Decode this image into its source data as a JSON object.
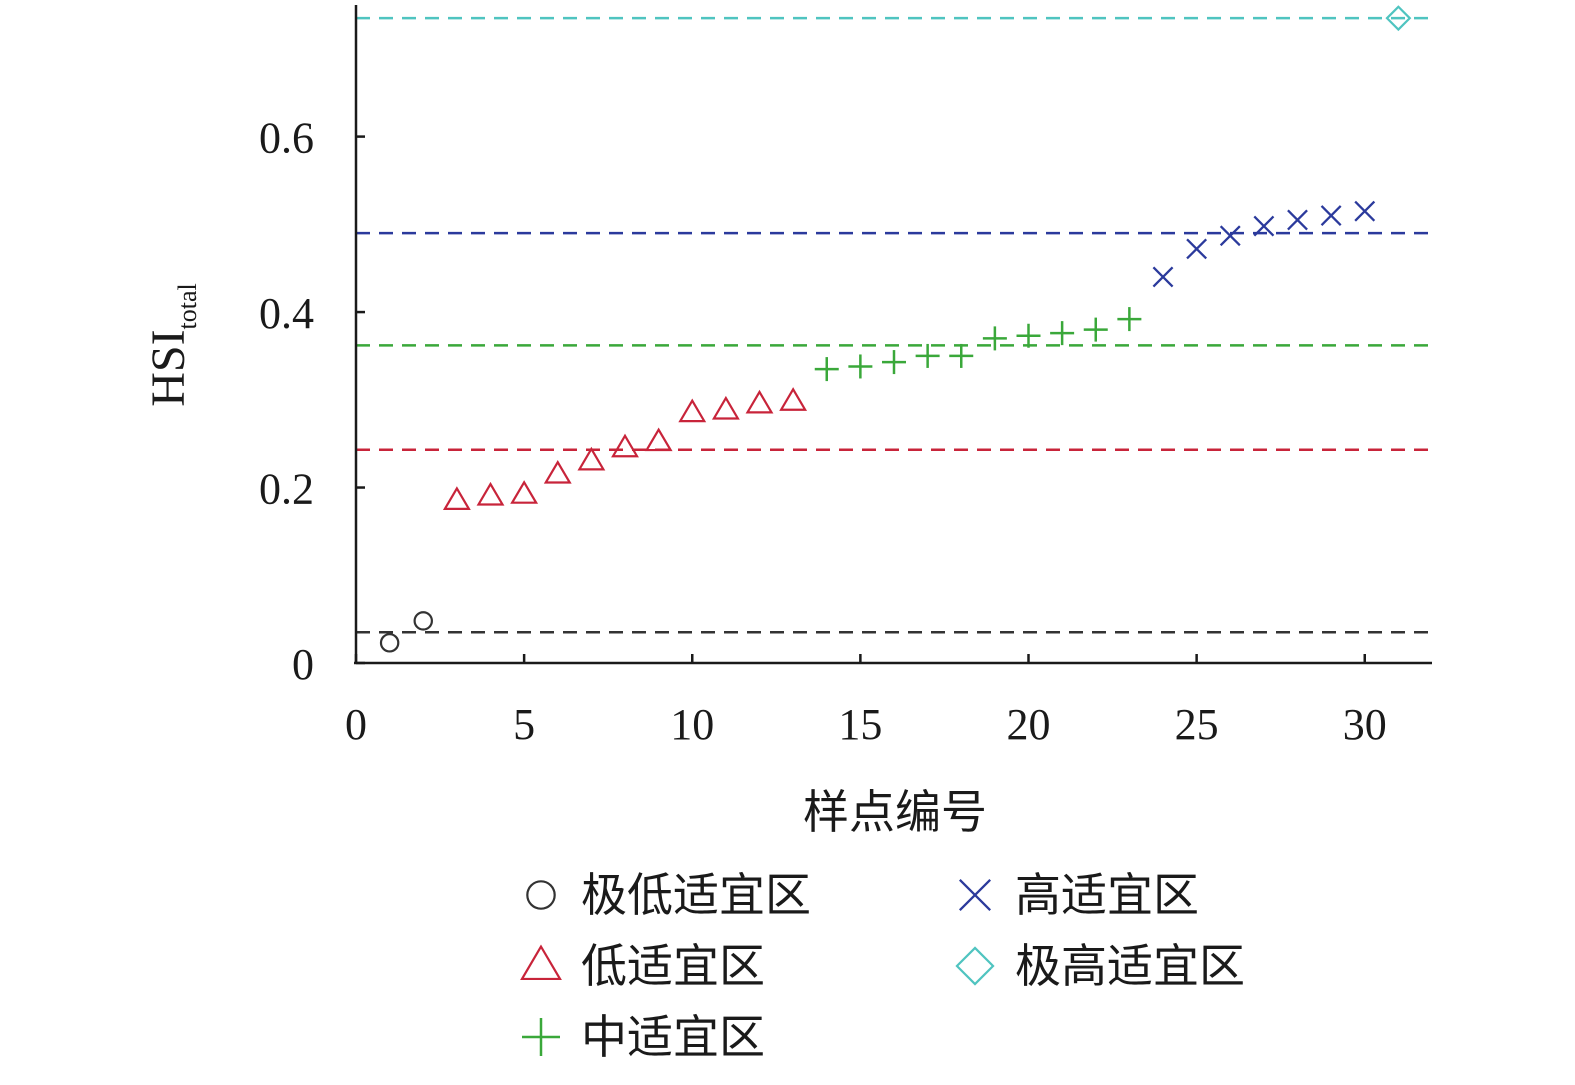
{
  "chart_data": {
    "type": "scatter",
    "xlabel": "样点编号",
    "ylabel": "HSI",
    "ylabel_subscript": "total",
    "xlim": [
      0,
      32
    ],
    "ylim": [
      0,
      0.75
    ],
    "xticks": [
      0,
      5,
      10,
      15,
      20,
      25,
      30
    ],
    "xtick_labels": [
      "0",
      "5",
      "10",
      "15",
      "20",
      "25",
      "30"
    ],
    "yticks": [
      0,
      0.2,
      0.4,
      0.6
    ],
    "ytick_labels": [
      "0",
      "0.2",
      "0.4",
      "0.6"
    ],
    "grid": false,
    "legend_position": "bottom",
    "series": [
      {
        "name": "极低适宜区",
        "marker": "circle",
        "color": "#333333",
        "x": [
          1,
          2
        ],
        "y": [
          0.023,
          0.048
        ]
      },
      {
        "name": "低适宜区",
        "marker": "triangle",
        "color": "#c8243a",
        "x": [
          3,
          4,
          5,
          6,
          7,
          8,
          9,
          10,
          11,
          12,
          13
        ],
        "y": [
          0.185,
          0.19,
          0.192,
          0.215,
          0.23,
          0.245,
          0.252,
          0.285,
          0.288,
          0.295,
          0.298
        ]
      },
      {
        "name": "中适宜区",
        "marker": "plus",
        "color": "#3aa83a",
        "x": [
          14,
          15,
          16,
          17,
          18,
          19,
          20,
          21,
          22,
          23
        ],
        "y": [
          0.335,
          0.338,
          0.343,
          0.35,
          0.35,
          0.37,
          0.373,
          0.376,
          0.38,
          0.392
        ]
      },
      {
        "name": "高适宜区",
        "marker": "x",
        "color": "#2b3a9c",
        "x": [
          24,
          25,
          26,
          27,
          28,
          29,
          30
        ],
        "y": [
          0.44,
          0.472,
          0.487,
          0.498,
          0.505,
          0.51,
          0.515
        ]
      },
      {
        "name": "极高适宜区",
        "marker": "diamond",
        "color": "#4fc4c0",
        "x": [
          31
        ],
        "y": [
          0.735
        ]
      }
    ],
    "threshold_lines": [
      {
        "y": 0.035,
        "color": "#333333"
      },
      {
        "y": 0.243,
        "color": "#c8243a"
      },
      {
        "y": 0.362,
        "color": "#3aa83a"
      },
      {
        "y": 0.49,
        "color": "#2b3a9c"
      },
      {
        "y": 0.735,
        "color": "#4fc4c0"
      }
    ]
  }
}
